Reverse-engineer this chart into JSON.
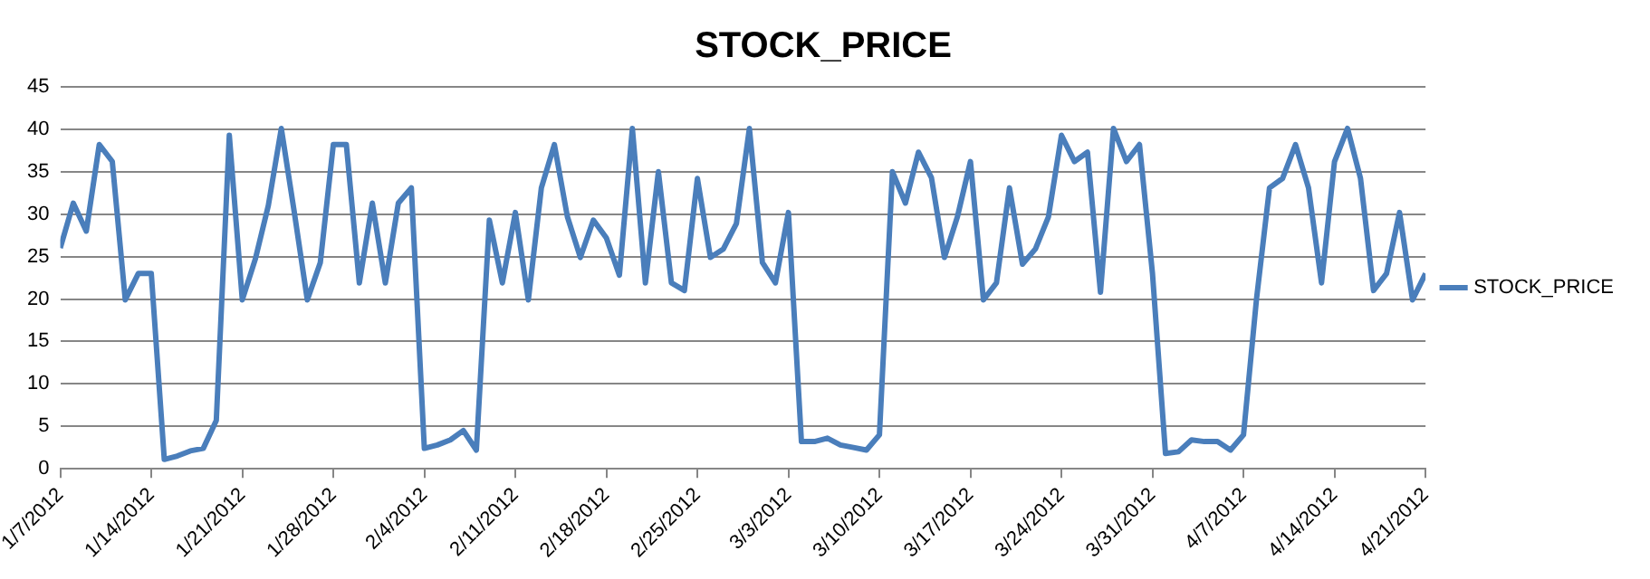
{
  "chart_data": {
    "type": "line",
    "title": "STOCK_PRICE",
    "x": [
      "2012-01-07",
      "2012-01-08",
      "2012-01-09",
      "2012-01-10",
      "2012-01-11",
      "2012-01-12",
      "2012-01-13",
      "2012-01-14",
      "2012-01-15",
      "2012-01-16",
      "2012-01-17",
      "2012-01-18",
      "2012-01-19",
      "2012-01-20",
      "2012-01-21",
      "2012-01-22",
      "2012-01-23",
      "2012-01-24",
      "2012-01-25",
      "2012-01-26",
      "2012-01-27",
      "2012-01-28",
      "2012-01-29",
      "2012-01-30",
      "2012-01-31",
      "2012-02-01",
      "2012-02-02",
      "2012-02-03",
      "2012-02-04",
      "2012-02-05",
      "2012-02-06",
      "2012-02-07",
      "2012-02-08",
      "2012-02-09",
      "2012-02-10",
      "2012-02-11",
      "2012-02-12",
      "2012-02-13",
      "2012-02-14",
      "2012-02-15",
      "2012-02-16",
      "2012-02-17",
      "2012-02-18",
      "2012-02-19",
      "2012-02-20",
      "2012-02-21",
      "2012-02-22",
      "2012-02-23",
      "2012-02-24",
      "2012-02-25",
      "2012-02-26",
      "2012-02-27",
      "2012-02-28",
      "2012-02-29",
      "2012-03-01",
      "2012-03-02",
      "2012-03-03",
      "2012-03-04",
      "2012-03-05",
      "2012-03-06",
      "2012-03-07",
      "2012-03-08",
      "2012-03-09",
      "2012-03-10",
      "2012-03-11",
      "2012-03-12",
      "2012-03-13",
      "2012-03-14",
      "2012-03-15",
      "2012-03-16",
      "2012-03-17",
      "2012-03-18",
      "2012-03-19",
      "2012-03-20",
      "2012-03-21",
      "2012-03-22",
      "2012-03-23",
      "2012-03-24",
      "2012-03-25",
      "2012-03-26",
      "2012-03-27",
      "2012-03-28",
      "2012-03-29",
      "2012-03-30",
      "2012-03-31",
      "2012-04-01",
      "2012-04-02",
      "2012-04-03",
      "2012-04-04",
      "2012-04-05",
      "2012-04-06",
      "2012-04-07",
      "2012-04-08",
      "2012-04-09",
      "2012-04-10",
      "2012-04-11",
      "2012-04-12",
      "2012-04-13",
      "2012-04-14",
      "2012-04-15",
      "2012-04-16",
      "2012-04-17",
      "2012-04-18",
      "2012-04-19",
      "2012-04-20",
      "2012-04-21"
    ],
    "series": [
      {
        "name": "STOCK_PRICE",
        "color": "#4a7ebb",
        "values": [
          26,
          31.3,
          28,
          38.2,
          36.2,
          19.9,
          23,
          23,
          1.1,
          1.5,
          2.1,
          2.4,
          5.7,
          39.3,
          19.9,
          24.7,
          31,
          40.1,
          30.2,
          19.9,
          24.3,
          38.2,
          38.2,
          21.9,
          31.3,
          21.9,
          31.3,
          33.1,
          2.4,
          2.8,
          3.4,
          4.5,
          2.2,
          29.3,
          21.9,
          30.2,
          19.9,
          33.1,
          38.2,
          29.7,
          24.9,
          29.3,
          27.2,
          22.8,
          40.1,
          21.9,
          35,
          21.9,
          21,
          34.2,
          24.9,
          25.9,
          28.9,
          40.1,
          24.3,
          21.9,
          30.2,
          3.2,
          3.2,
          3.6,
          2.8,
          2.5,
          2.2,
          4,
          35,
          31.3,
          37.3,
          34.3,
          24.9,
          29.7,
          36.2,
          19.9,
          21.9,
          33.1,
          24.1,
          25.9,
          29.7,
          39.3,
          36.2,
          37.3,
          20.8,
          40.1,
          36.2,
          38.2,
          23,
          1.8,
          2,
          3.4,
          3.2,
          3.2,
          2.2,
          4,
          20,
          33.1,
          34.2,
          38.2,
          33.1,
          21.9,
          36.2,
          40.1,
          34.2,
          21,
          23,
          30.2,
          19.9,
          23
        ]
      }
    ],
    "xlim": [
      "2012-01-07",
      "2012-04-21"
    ],
    "xticks": [
      {
        "value": "2012-01-07",
        "label": "1/7/2012"
      },
      {
        "value": "2012-01-14",
        "label": "1/14/2012"
      },
      {
        "value": "2012-01-21",
        "label": "1/21/2012"
      },
      {
        "value": "2012-01-28",
        "label": "1/28/2012"
      },
      {
        "value": "2012-02-04",
        "label": "2/4/2012"
      },
      {
        "value": "2012-02-11",
        "label": "2/11/2012"
      },
      {
        "value": "2012-02-18",
        "label": "2/18/2012"
      },
      {
        "value": "2012-02-25",
        "label": "2/25/2012"
      },
      {
        "value": "2012-03-03",
        "label": "3/3/2012"
      },
      {
        "value": "2012-03-10",
        "label": "3/10/2012"
      },
      {
        "value": "2012-03-17",
        "label": "3/17/2012"
      },
      {
        "value": "2012-03-24",
        "label": "3/24/2012"
      },
      {
        "value": "2012-03-31",
        "label": "3/31/2012"
      },
      {
        "value": "2012-04-07",
        "label": "4/7/2012"
      },
      {
        "value": "2012-04-14",
        "label": "4/14/2012"
      },
      {
        "value": "2012-04-21",
        "label": "4/21/2012"
      }
    ],
    "ylim": [
      0,
      45
    ],
    "yticks": [
      0,
      5,
      10,
      15,
      20,
      25,
      30,
      35,
      40,
      45
    ],
    "grid": "y",
    "legend": "right",
    "marker": "none",
    "line_style": "solid"
  }
}
